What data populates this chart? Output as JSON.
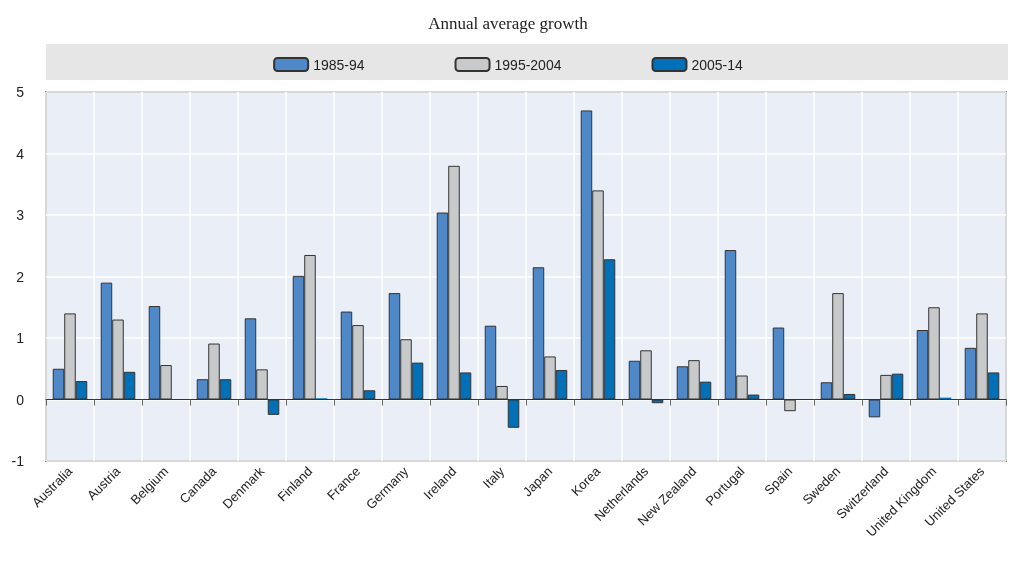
{
  "chart_data": {
    "type": "bar",
    "title": "Annual average growth",
    "categories": [
      "Australia",
      "Austria",
      "Belgium",
      "Canada",
      "Denmark",
      "Finland",
      "France",
      "Germany",
      "Ireland",
      "Italy",
      "Japan",
      "Korea",
      "Netherlands",
      "New Zealand",
      "Portugal",
      "Spain",
      "Sweden",
      "Switzerland",
      "United Kingdom",
      "United States"
    ],
    "series": [
      {
        "name": "1985-94",
        "color": "#4e88c8",
        "values": [
          0.5,
          1.9,
          1.52,
          0.33,
          1.32,
          2.01,
          1.43,
          1.73,
          3.04,
          1.2,
          2.15,
          4.7,
          0.63,
          0.54,
          2.43,
          1.17,
          0.28,
          -0.29,
          1.13,
          0.84
        ]
      },
      {
        "name": "1995-2004",
        "color": "#c8c9cb",
        "values": [
          1.4,
          1.3,
          0.56,
          0.91,
          0.49,
          2.35,
          1.21,
          0.98,
          3.8,
          0.22,
          0.7,
          3.4,
          0.8,
          0.64,
          0.39,
          -0.19,
          1.73,
          0.4,
          1.5,
          1.4
        ]
      },
      {
        "name": "2005-14",
        "color": "#0070b8",
        "values": [
          0.3,
          0.45,
          null,
          0.33,
          -0.25,
          0.02,
          0.15,
          0.6,
          0.44,
          -0.46,
          0.48,
          2.28,
          -0.06,
          0.29,
          0.08,
          null,
          0.09,
          0.42,
          0.03,
          0.44
        ]
      }
    ],
    "ylim": [
      -1,
      5
    ],
    "yticks": [
      -1,
      0,
      1,
      2,
      3,
      4,
      5
    ],
    "grid": true,
    "legend": "top"
  }
}
